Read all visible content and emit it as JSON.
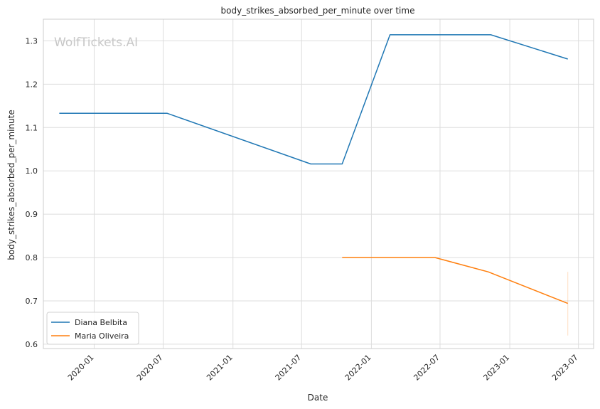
{
  "chart_data": {
    "type": "line",
    "title": "body_strikes_absorbed_per_minute over time",
    "xlabel": "Date",
    "ylabel": "body_strikes_absorbed_per_minute",
    "watermark": "WolfTickets.AI",
    "xlim": [
      "2019-08-20",
      "2023-08-10"
    ],
    "ylim": [
      0.59,
      1.35
    ],
    "grid": true,
    "legend_position": "lower-left",
    "x_ticks": [
      "2020-01",
      "2020-07",
      "2021-01",
      "2021-07",
      "2022-01",
      "2022-07",
      "2023-01",
      "2023-07"
    ],
    "y_ticks": [
      "0.6",
      "0.7",
      "0.8",
      "0.9",
      "1.0",
      "1.1",
      "1.2",
      "1.3"
    ],
    "series": [
      {
        "name": "Diana Belbita",
        "color": "#1f77b4",
        "points": [
          {
            "x": "2019-10-01",
            "y": 1.133
          },
          {
            "x": "2020-07-11",
            "y": 1.133
          },
          {
            "x": "2021-07-25",
            "y": 1.016
          },
          {
            "x": "2021-10-16",
            "y": 1.016
          },
          {
            "x": "2022-02-19",
            "y": 1.314
          },
          {
            "x": "2022-11-12",
            "y": 1.314
          },
          {
            "x": "2023-06-03",
            "y": 1.258
          }
        ]
      },
      {
        "name": "Maria Oliveira",
        "color": "#ff7f0e",
        "points": [
          {
            "x": "2021-10-16",
            "y": 0.8
          },
          {
            "x": "2022-06-18",
            "y": 0.8
          },
          {
            "x": "2022-11-05",
            "y": 0.767
          },
          {
            "x": "2023-06-03",
            "y": 0.694
          }
        ]
      }
    ],
    "errorbar": {
      "series": "Maria Oliveira",
      "x": "2023-06-03",
      "low": 0.62,
      "high": 0.767
    }
  }
}
